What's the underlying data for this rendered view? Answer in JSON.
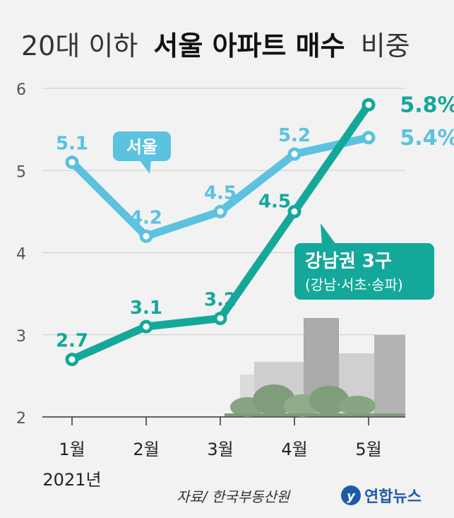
{
  "chart_data": {
    "type": "line",
    "title": {
      "prefix": "20대 이하",
      "highlight": "서울 아파트 매수",
      "suffix": "비중"
    },
    "categories": [
      "1월",
      "2월",
      "3월",
      "4월",
      "5월"
    ],
    "year_label": "2021년",
    "ylim": [
      2,
      6
    ],
    "yticks": [
      2,
      3,
      4,
      5,
      6
    ],
    "series": [
      {
        "name": "서울",
        "color": "#5bc2df",
        "values": [
          5.1,
          4.2,
          4.5,
          5.2,
          5.4
        ],
        "data_labels": [
          "5.1",
          "4.2",
          "4.5",
          "5.2",
          "5.4%"
        ]
      },
      {
        "name": "강남권 3구",
        "subtitle": "(강남·서초·송파)",
        "color": "#14a89a",
        "values": [
          2.7,
          3.1,
          3.2,
          4.5,
          5.8
        ],
        "data_labels": [
          "2.7",
          "3.1",
          "3.2",
          "4.5",
          "5.8%"
        ]
      }
    ],
    "source": "자료/ 한국부동산원",
    "logo": "연합뉴스",
    "grid": true
  }
}
